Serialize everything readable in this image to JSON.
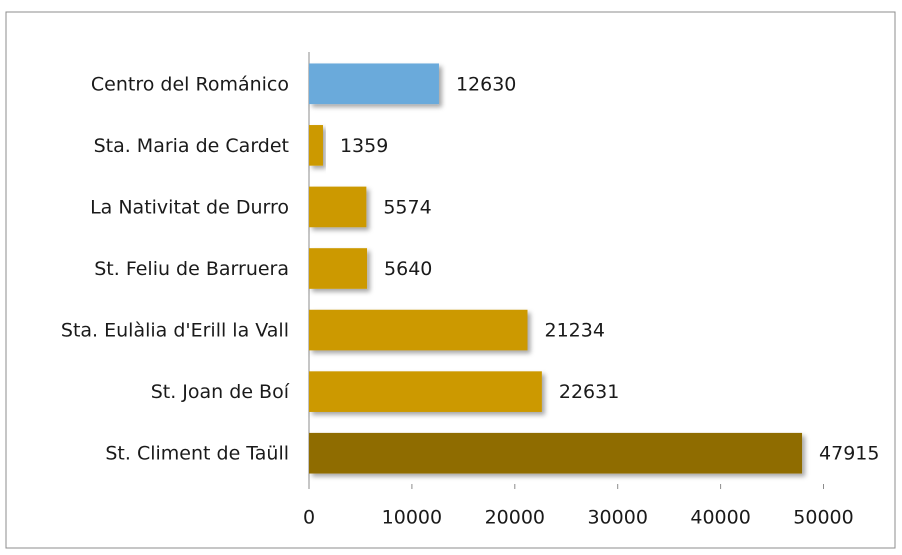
{
  "chart_data": {
    "type": "bar",
    "orientation": "horizontal",
    "categories": [
      "Centro del Románico",
      "Sta. Maria de Cardet",
      "La Nativitat de Durro",
      "St. Feliu de Barruera",
      "Sta. Eulàlia d'Erill la Vall",
      "St. Joan de Boí",
      "St. Climent de Taüll"
    ],
    "values": [
      12630,
      1359,
      5574,
      5640,
      21234,
      22631,
      47915
    ],
    "colors": [
      "#6aaadb",
      "#cc9900",
      "#cc9900",
      "#cc9900",
      "#cc9900",
      "#cc9900",
      "#8f6c00"
    ],
    "xlim": [
      0,
      50000
    ],
    "xticks": [
      0,
      10000,
      20000,
      30000,
      40000,
      50000
    ],
    "grid": false
  }
}
